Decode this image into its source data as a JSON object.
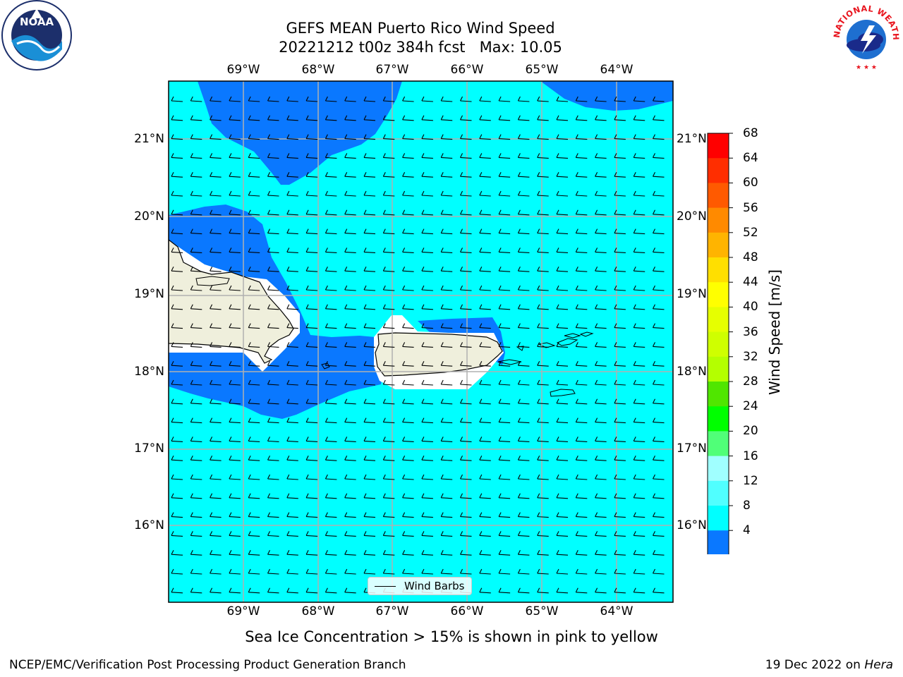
{
  "title": {
    "line1": "GEFS MEAN Puerto Rico Wind Speed",
    "line2": "20221212 t00z 384h fcst   Max: 10.05"
  },
  "map": {
    "lon_labels": [
      "69°W",
      "68°W",
      "67°W",
      "66°W",
      "65°W",
      "64°W"
    ],
    "lat_labels": [
      "21°N",
      "20°N",
      "19°N",
      "18°N",
      "17°N",
      "16°N"
    ],
    "land_color": "#efefdc",
    "coast_color": "#000000",
    "grid_color": "#b0b0b0",
    "fill_colors": {
      "4-8": "#0a78ff",
      "8-12": "#00ffff",
      "below-4": "#0000ff",
      "no-data": "#ffffff"
    }
  },
  "legend": {
    "label": "Wind Barbs"
  },
  "colorbar": {
    "title": "Wind Speed [m/s]",
    "ticks": [
      "68",
      "64",
      "60",
      "56",
      "52",
      "48",
      "44",
      "40",
      "36",
      "32",
      "28",
      "24",
      "20",
      "16",
      "12",
      "8",
      "4"
    ],
    "colors": [
      "#ff0000",
      "#ff2e00",
      "#ff5a00",
      "#ff8a00",
      "#ffb400",
      "#ffdf00",
      "#ffff00",
      "#e6ff00",
      "#cfff00",
      "#b4ff00",
      "#50e600",
      "#00ff00",
      "#50ff78",
      "#a0ffff",
      "#50ffff",
      "#00ffff",
      "#0a78ff"
    ],
    "extend_color": "#0000ff",
    "min_value": 4,
    "max_value": 68,
    "step": 4
  },
  "note": "Sea Ice Concentration > 15% is shown in pink to yellow",
  "footer": {
    "left": "NCEP/EMC/Verification Post Processing Product Generation Branch",
    "right_date": "19 Dec 2022 on",
    "right_host": "Hera"
  },
  "logos": {
    "noaa_text": "NOAA",
    "nws_text": "NATIONAL WEATHER SERVICE"
  }
}
